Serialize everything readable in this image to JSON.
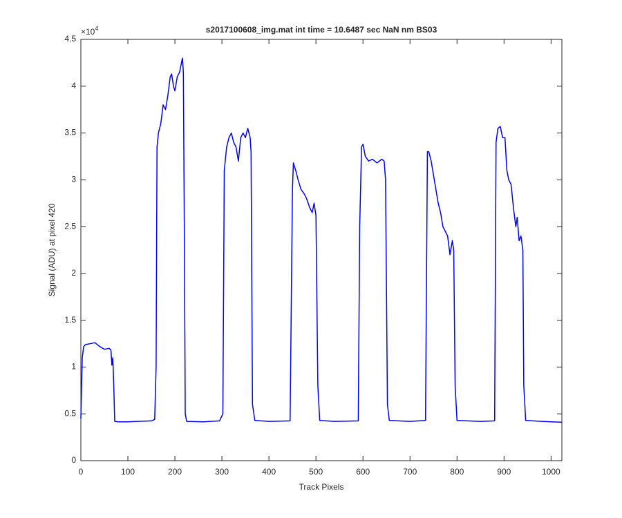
{
  "chart_data": {
    "type": "line",
    "title": "s2017100608_img.mat int time = 10.6487 sec  NaN nm BS03",
    "x_label": "Track Pixels",
    "y_label": "Signal (ADU) at pixel 420",
    "y_multiplier": {
      "base": "×10",
      "exponent": "4"
    },
    "color": "#0000ff",
    "xlim": [
      0,
      1023
    ],
    "ylim": [
      0,
      4.5
    ],
    "xticks": [
      0,
      100,
      200,
      300,
      400,
      500,
      600,
      700,
      800,
      900,
      1000
    ],
    "yticks": [
      0,
      0.5,
      1,
      1.5,
      2,
      2.5,
      3,
      3.5,
      4,
      4.5
    ],
    "grid": false,
    "x": [
      0,
      3,
      6,
      10,
      20,
      30,
      40,
      50,
      60,
      64,
      66,
      68,
      70,
      72,
      80,
      100,
      120,
      150,
      157,
      160,
      162,
      165,
      170,
      175,
      180,
      185,
      190,
      193,
      197,
      200,
      205,
      210,
      214,
      216,
      218,
      220,
      222,
      225,
      260,
      295,
      302,
      305,
      310,
      315,
      320,
      325,
      330,
      335,
      340,
      345,
      350,
      355,
      360,
      362,
      365,
      370,
      400,
      445,
      450,
      452,
      457,
      462,
      468,
      475,
      480,
      487,
      492,
      496,
      500,
      504,
      508,
      540,
      590,
      593,
      597,
      600,
      605,
      612,
      620,
      630,
      640,
      645,
      648,
      652,
      656,
      700,
      733,
      737,
      740,
      745,
      750,
      755,
      760,
      765,
      770,
      775,
      780,
      785,
      790,
      793,
      796,
      800,
      850,
      880,
      883,
      887,
      892,
      897,
      902,
      906,
      910,
      915,
      920,
      925,
      928,
      932,
      936,
      940,
      942,
      946,
      980,
      1023
    ],
    "values": [
      0.45,
      1.1,
      1.22,
      1.24,
      1.25,
      1.26,
      1.22,
      1.19,
      1.2,
      1.18,
      1.02,
      1.1,
      0.8,
      0.42,
      0.415,
      0.415,
      0.42,
      0.425,
      0.44,
      1.0,
      3.35,
      3.5,
      3.6,
      3.8,
      3.75,
      3.9,
      4.1,
      4.13,
      4.0,
      3.95,
      4.1,
      4.15,
      4.25,
      4.3,
      4.15,
      2.5,
      0.5,
      0.42,
      0.415,
      0.425,
      0.5,
      3.1,
      3.35,
      3.45,
      3.5,
      3.4,
      3.35,
      3.2,
      3.45,
      3.5,
      3.45,
      3.55,
      3.45,
      3.3,
      0.6,
      0.43,
      0.42,
      0.425,
      2.9,
      3.18,
      3.1,
      3.0,
      2.9,
      2.85,
      2.8,
      2.7,
      2.65,
      2.75,
      2.62,
      0.8,
      0.43,
      0.42,
      0.425,
      2.5,
      3.35,
      3.38,
      3.25,
      3.2,
      3.22,
      3.18,
      3.22,
      3.2,
      3.0,
      0.6,
      0.43,
      0.42,
      0.43,
      3.3,
      3.3,
      3.2,
      3.05,
      2.9,
      2.75,
      2.65,
      2.5,
      2.45,
      2.4,
      2.2,
      2.35,
      2.25,
      0.8,
      0.43,
      0.42,
      0.425,
      3.4,
      3.55,
      3.57,
      3.45,
      3.45,
      3.1,
      3.0,
      2.95,
      2.7,
      2.5,
      2.6,
      2.35,
      2.4,
      2.25,
      0.8,
      0.43,
      0.42,
      0.41
    ]
  }
}
